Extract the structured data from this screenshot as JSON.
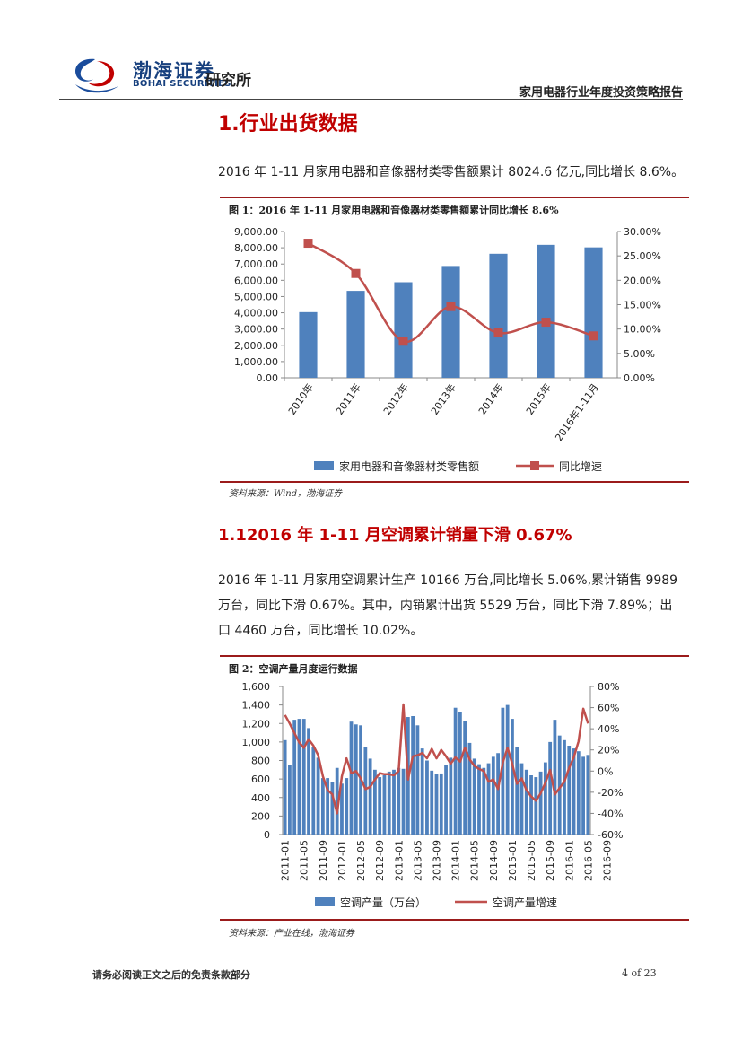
{
  "header": {
    "brand_cn": "渤海证券",
    "brand_en": "BOHAI SECURITIES",
    "dept": "研究所",
    "report_title": "家用电器行业年度投资策略报告"
  },
  "section1": {
    "heading": "1.行业出货数据",
    "para": "2016 年 1-11 月家用电器和音像器材类零售额累计 8024.6 亿元,同比增长 8.6%。"
  },
  "figure1": {
    "title": "图 1：2016 年 1-11 月家用电器和音像器材类零售额累计同比增长 8.6%",
    "source": "资料来源：Wind，渤海证券"
  },
  "section2": {
    "heading": "1.12016 年 1-11 月空调累计销量下滑 0.67%",
    "para_lines": [
      "2016 年 1-11 月家用空调累计生产 10166 万台,同比增长 5.06%,累计销售 9989",
      "万台，同比下滑 0.67%。其中，内销累计出货 5529 万台，同比下滑 7.89%；出",
      "口 4460 万台，同比增长 10.02%。"
    ]
  },
  "figure2": {
    "title": "图 2：空调产量月度运行数据",
    "source": "资料来源：产业在线，渤海证券"
  },
  "footer": {
    "disclaimer": "请务必阅读正文之后的免责条款部分",
    "page": "4 of 23"
  },
  "chart_data": [
    {
      "type": "bar",
      "categories": [
        "2010年",
        "2011年",
        "2012年",
        "2013年",
        "2014年",
        "2015年",
        "2016年1-11月"
      ],
      "series": [
        {
          "name": "家用电器和音像器材类零售额",
          "type": "bar",
          "axis": "left",
          "values": [
            4040,
            5350,
            5880,
            6880,
            7630,
            8180,
            8024.6
          ]
        },
        {
          "name": "同比增速",
          "type": "line",
          "axis": "right",
          "values": [
            27.6,
            21.4,
            7.5,
            14.6,
            9.2,
            11.4,
            8.6
          ]
        }
      ],
      "y_left": {
        "min": 0,
        "max": 9000,
        "ticks": [
          "0.00",
          "1,000.00",
          "2,000.00",
          "3,000.00",
          "4,000.00",
          "5,000.00",
          "6,000.00",
          "7,000.00",
          "8,000.00",
          "9,000.00"
        ]
      },
      "y_right": {
        "min": 0,
        "max": 30,
        "ticks": [
          "0.00%",
          "5.00%",
          "10.00%",
          "15.00%",
          "20.00%",
          "25.00%",
          "30.00%"
        ]
      },
      "bar_color": "#4f81bd",
      "line_color": "#c0504d",
      "legend_position": "bottom"
    },
    {
      "type": "bar",
      "x_tick_labels": [
        "2011-01",
        "2011-05",
        "2011-09",
        "2012-01",
        "2012-05",
        "2012-09",
        "2013-01",
        "2013-05",
        "2013-09",
        "2014-01",
        "2014-05",
        "2014-09",
        "2015-01",
        "2015-05",
        "2015-09",
        "2016-01",
        "2016-05",
        "2016-09"
      ],
      "start_month": "2011-01",
      "series": [
        {
          "name": "空调产量（万台）",
          "type": "bar",
          "axis": "left",
          "values": [
            1020,
            750,
            1240,
            1250,
            1250,
            1150,
            950,
            830,
            610,
            610,
            570,
            720,
            550,
            610,
            1220,
            1190,
            1180,
            950,
            820,
            700,
            620,
            640,
            680,
            700,
            720,
            710,
            1270,
            1280,
            1180,
            930,
            800,
            690,
            650,
            660,
            750,
            830,
            1370,
            1320,
            1230,
            990,
            820,
            760,
            720,
            770,
            840,
            880,
            1370,
            1400,
            1250,
            950,
            770,
            700,
            640,
            620,
            680,
            780,
            1000,
            1240,
            1070,
            1020,
            960,
            930,
            900,
            840,
            860
          ]
        },
        {
          "name": "空调产量增速",
          "type": "line",
          "axis": "right",
          "values": [
            53,
            45,
            36,
            27,
            22,
            30,
            24,
            15,
            -5,
            -18,
            -22,
            -40,
            -5,
            12,
            -2,
            0,
            -7,
            -17,
            -15,
            -8,
            -2,
            -3,
            -3,
            -4,
            0,
            63,
            -8,
            14,
            15,
            17,
            12,
            21,
            12,
            20,
            14,
            7,
            13,
            9,
            22,
            11,
            5,
            2,
            0,
            -10,
            -8,
            -17,
            8,
            22,
            7,
            -12,
            -7,
            -18,
            -24,
            -28,
            -21,
            -11,
            1,
            -22,
            -16,
            -10,
            3,
            13,
            28,
            59,
            45
          ]
        }
      ],
      "y_left": {
        "min": 0,
        "max": 1600,
        "ticks": [
          "0",
          "200",
          "400",
          "600",
          "800",
          "1,000",
          "1,200",
          "1,400",
          "1,600"
        ]
      },
      "y_right": {
        "min": -60,
        "max": 80,
        "ticks": [
          "-60%",
          "-40%",
          "-20%",
          "0%",
          "20%",
          "40%",
          "60%",
          "80%"
        ]
      },
      "bar_color": "#4f81bd",
      "line_color": "#c0504d",
      "legend_position": "bottom"
    }
  ]
}
